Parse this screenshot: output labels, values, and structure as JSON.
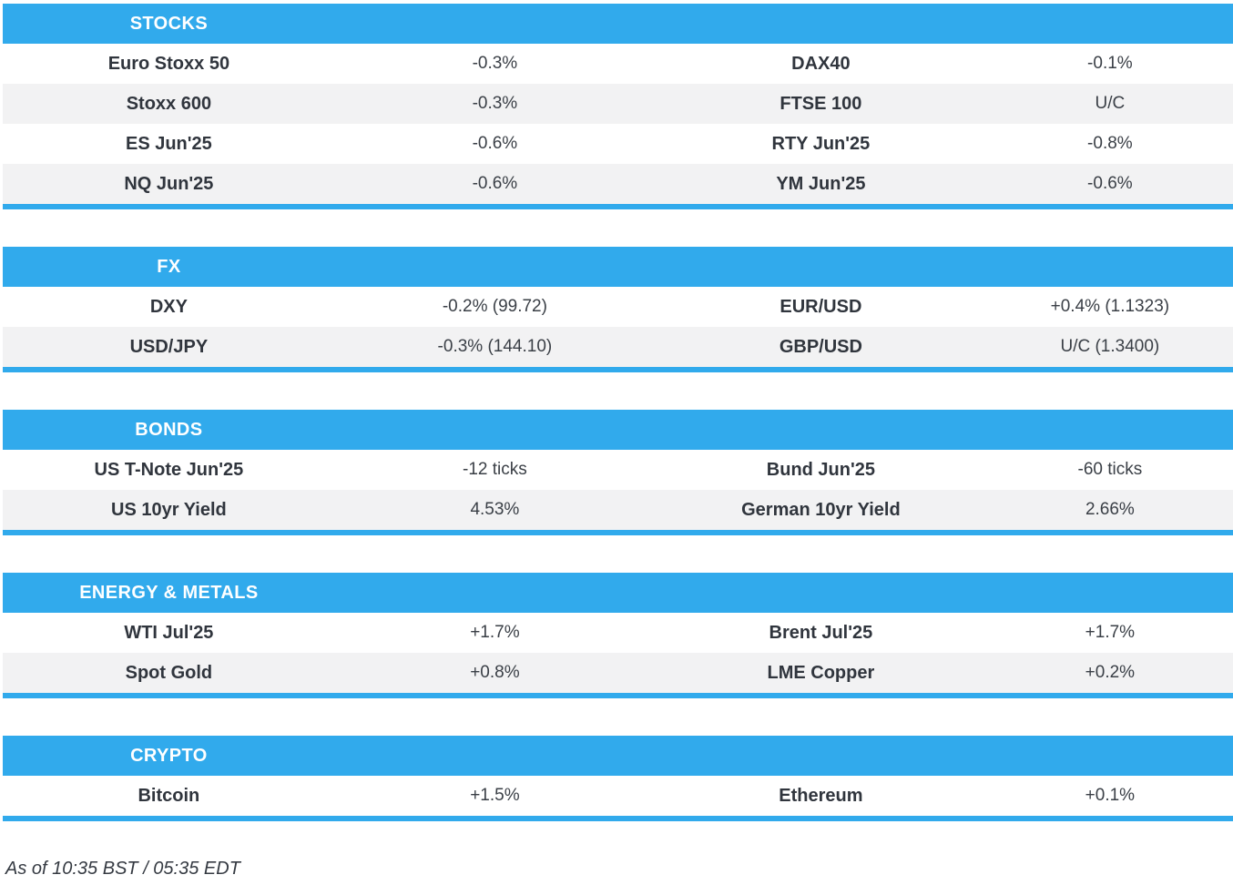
{
  "theme": {
    "accent": "#31AAEC",
    "row_alt": "#F2F2F3",
    "label_color": "#30353D",
    "value_color": "#3A3F46",
    "header_text": "#FFFFFF",
    "footer_color": "#353A42"
  },
  "sections": [
    {
      "title": "STOCKS",
      "rows": [
        {
          "cells": [
            {
              "label": "Euro Stoxx 50",
              "value": "-0.3%"
            },
            {
              "label": "DAX40",
              "value": "-0.1%"
            }
          ]
        },
        {
          "cells": [
            {
              "label": "Stoxx 600",
              "value": "-0.3%"
            },
            {
              "label": "FTSE 100",
              "value": "U/C"
            }
          ]
        },
        {
          "cells": [
            {
              "label": "ES Jun'25",
              "value": "-0.6%"
            },
            {
              "label": "RTY Jun'25",
              "value": "-0.8%"
            }
          ]
        },
        {
          "cells": [
            {
              "label": "NQ Jun'25",
              "value": "-0.6%"
            },
            {
              "label": "YM Jun'25",
              "value": "-0.6%"
            }
          ]
        }
      ]
    },
    {
      "title": "FX",
      "rows": [
        {
          "cells": [
            {
              "label": "DXY",
              "value": "-0.2% (99.72)"
            },
            {
              "label": "EUR/USD",
              "value": "+0.4% (1.1323)"
            }
          ]
        },
        {
          "cells": [
            {
              "label": "USD/JPY",
              "value": "-0.3% (144.10)"
            },
            {
              "label": "GBP/USD",
              "value": "U/C (1.3400)"
            }
          ]
        }
      ]
    },
    {
      "title": "BONDS",
      "rows": [
        {
          "cells": [
            {
              "label": "US T-Note Jun'25",
              "value": "-12 ticks"
            },
            {
              "label": "Bund Jun'25",
              "value": "-60 ticks"
            }
          ]
        },
        {
          "cells": [
            {
              "label": "US 10yr Yield",
              "value": "4.53%"
            },
            {
              "label": "German 10yr Yield",
              "value": "2.66%"
            }
          ]
        }
      ]
    },
    {
      "title": "ENERGY & METALS",
      "rows": [
        {
          "cells": [
            {
              "label": "WTI Jul'25",
              "value": "+1.7%"
            },
            {
              "label": "Brent Jul'25",
              "value": "+1.7%"
            }
          ]
        },
        {
          "cells": [
            {
              "label": "Spot Gold",
              "value": "+0.8%"
            },
            {
              "label": "LME Copper",
              "value": "+0.2%"
            }
          ]
        }
      ]
    },
    {
      "title": "CRYPTO",
      "rows": [
        {
          "cells": [
            {
              "label": "Bitcoin",
              "value": "+1.5%"
            },
            {
              "label": "Ethereum",
              "value": "+0.1%"
            }
          ]
        }
      ]
    }
  ],
  "footer": {
    "as_of": "As of 10:35 BST / 05:35 EDT"
  }
}
